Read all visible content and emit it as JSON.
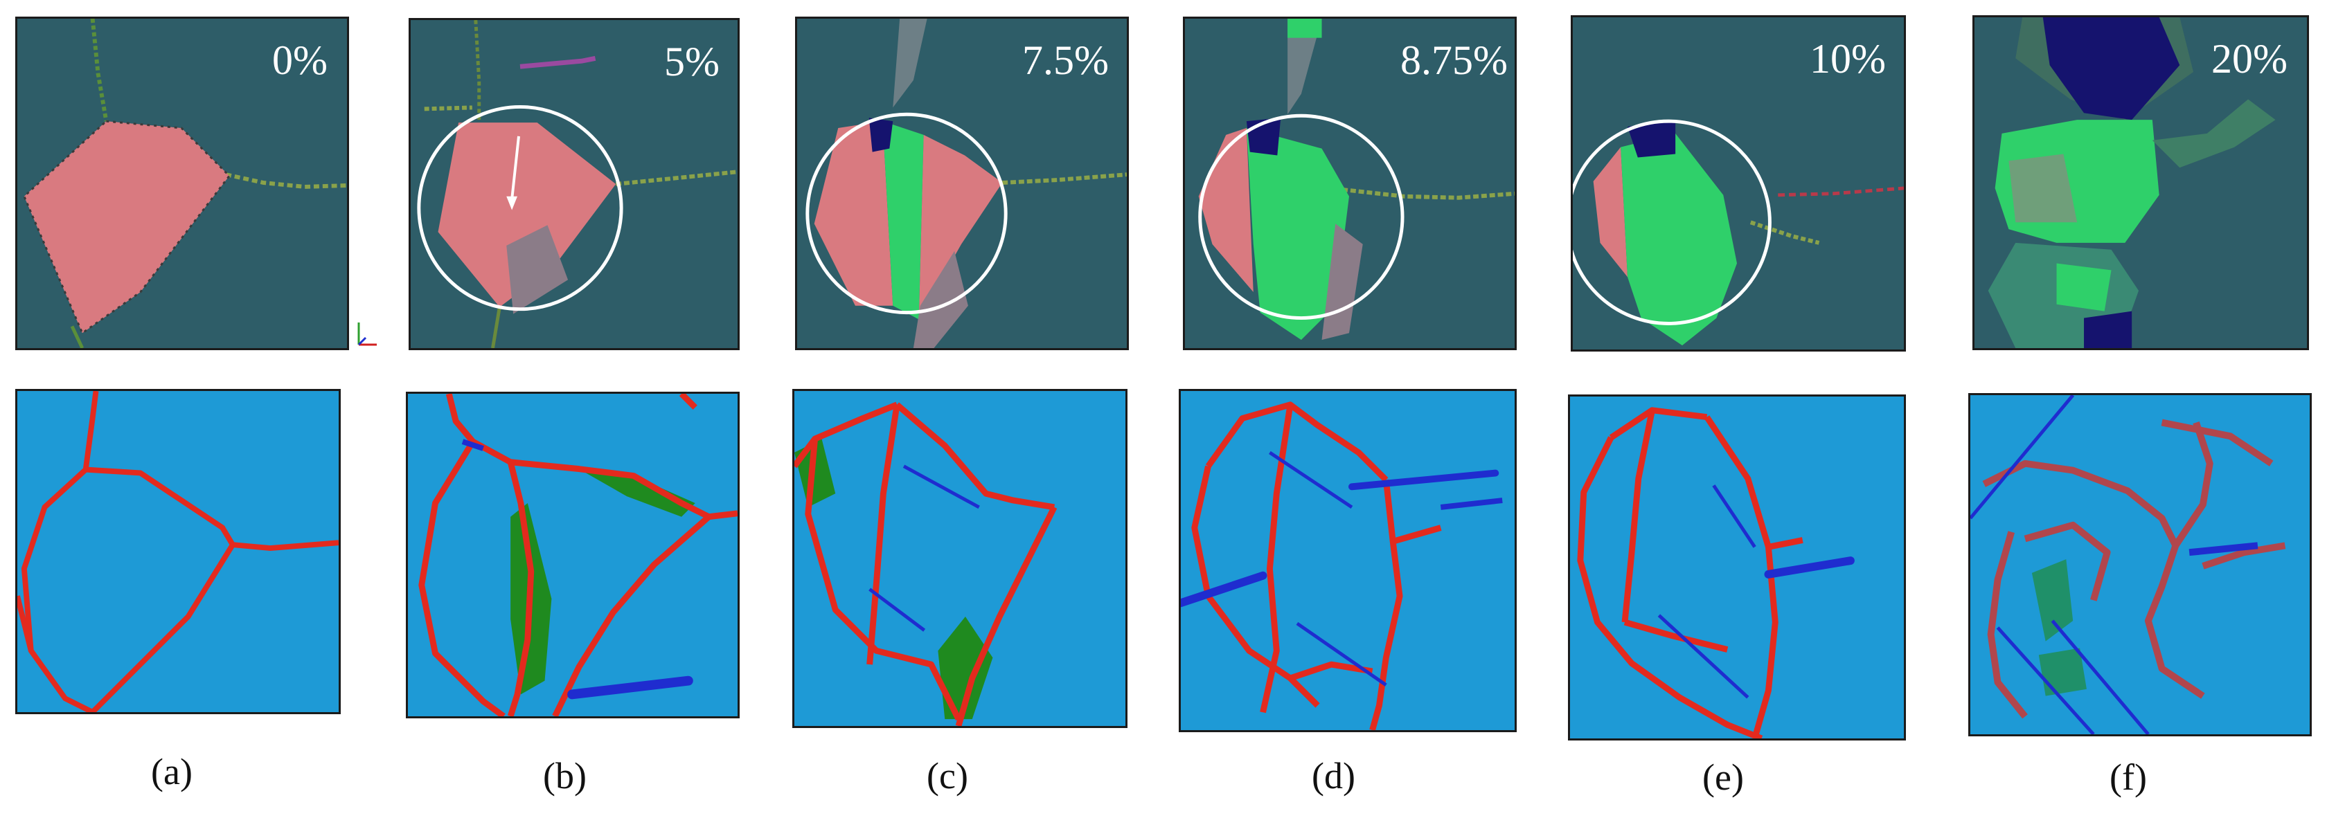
{
  "panels": [
    {
      "id": "a",
      "strain": "0%",
      "caption": "(a)"
    },
    {
      "id": "b",
      "strain": "5%",
      "caption": "(b)"
    },
    {
      "id": "c",
      "strain": "7.5%",
      "caption": "(c)"
    },
    {
      "id": "d",
      "strain": "8.75%",
      "caption": "(d)"
    },
    {
      "id": "e",
      "strain": "10%",
      "caption": "(e)"
    },
    {
      "id": "f",
      "strain": "20%",
      "caption": "(f)"
    }
  ],
  "colors": {
    "matrix_top": "#2e5d68",
    "grain_original": "#d97a80",
    "grain_transformed": "#2fd06a",
    "void_region": "#15136e",
    "matrix_bottom": "#1e9ad6",
    "boundary_atoms": "#e32a1e",
    "defect_atoms": "#1f8a1f",
    "dislocation_line": "#1f2ccf",
    "highlight_circle": "#ffffff"
  }
}
